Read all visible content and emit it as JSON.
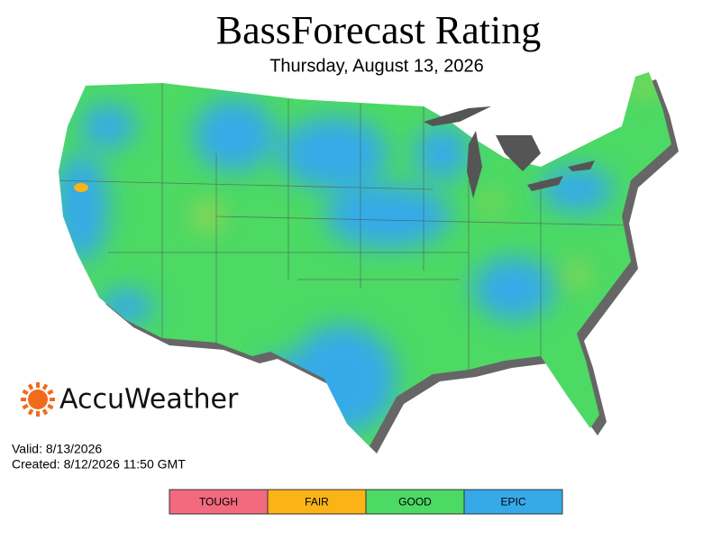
{
  "header": {
    "title": "BassForecast Rating",
    "subtitle": "Thursday, August 13, 2026"
  },
  "brand": "AccuWeather",
  "info": {
    "valid": "Valid: 8/13/2026",
    "created": "Created: 8/12/2026 11:50 GMT"
  },
  "legend": [
    {
      "label": "TOUGH",
      "color": "#f26a7e"
    },
    {
      "label": "FAIR",
      "color": "#fbb316"
    },
    {
      "label": "GOOD",
      "color": "#4cd964"
    },
    {
      "label": "EPIC",
      "color": "#36aae8"
    }
  ]
}
